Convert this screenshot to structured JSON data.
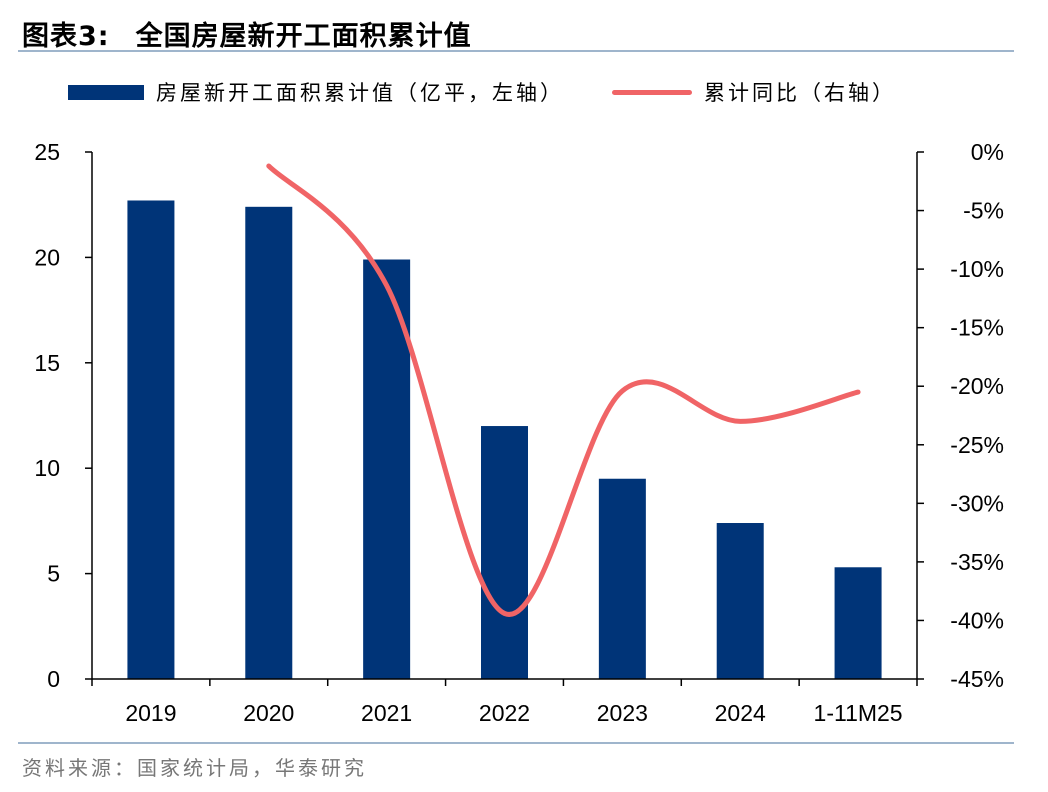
{
  "header": {
    "figure_label": "图表3:",
    "title": "全国房屋新开工面积累计值"
  },
  "legend": {
    "bar_label": "房屋新开工面积累计值（亿平，左轴）",
    "line_label": "累计同比（右轴）"
  },
  "colors": {
    "bar": "#003478",
    "line": "#f06466",
    "rule": "#9fb5cc"
  },
  "source": "资料来源：国家统计局，华泰研究",
  "chart_data": {
    "type": "bar",
    "title": "全国房屋新开工面积累计值",
    "categories": [
      "2019",
      "2020",
      "2021",
      "2022",
      "2023",
      "2024",
      "1-11M25"
    ],
    "series": [
      {
        "name": "房屋新开工面积累计值（亿平，左轴）",
        "type": "bar",
        "axis": "left",
        "values": [
          22.7,
          22.4,
          19.9,
          12.0,
          9.5,
          7.4,
          5.3
        ]
      },
      {
        "name": "累计同比（右轴）",
        "type": "line",
        "axis": "right",
        "smooth": true,
        "values": [
          null,
          -1.2,
          -11.4,
          -39.4,
          -20.4,
          -23.0,
          -20.5
        ]
      }
    ],
    "y_left": {
      "min": 0,
      "max": 25,
      "ticks": [
        "0",
        "5",
        "10",
        "15",
        "20",
        "25"
      ],
      "tick_values": [
        0,
        5,
        10,
        15,
        20,
        25
      ]
    },
    "y_right": {
      "min": -45,
      "max": 0,
      "ticks": [
        "0%",
        "-5%",
        "-10%",
        "-15%",
        "-20%",
        "-25%",
        "-30%",
        "-35%",
        "-40%",
        "-45%"
      ],
      "tick_values": [
        0,
        -5,
        -10,
        -15,
        -20,
        -25,
        -30,
        -35,
        -40,
        -45
      ]
    },
    "grid": false,
    "legend_position": "top"
  }
}
